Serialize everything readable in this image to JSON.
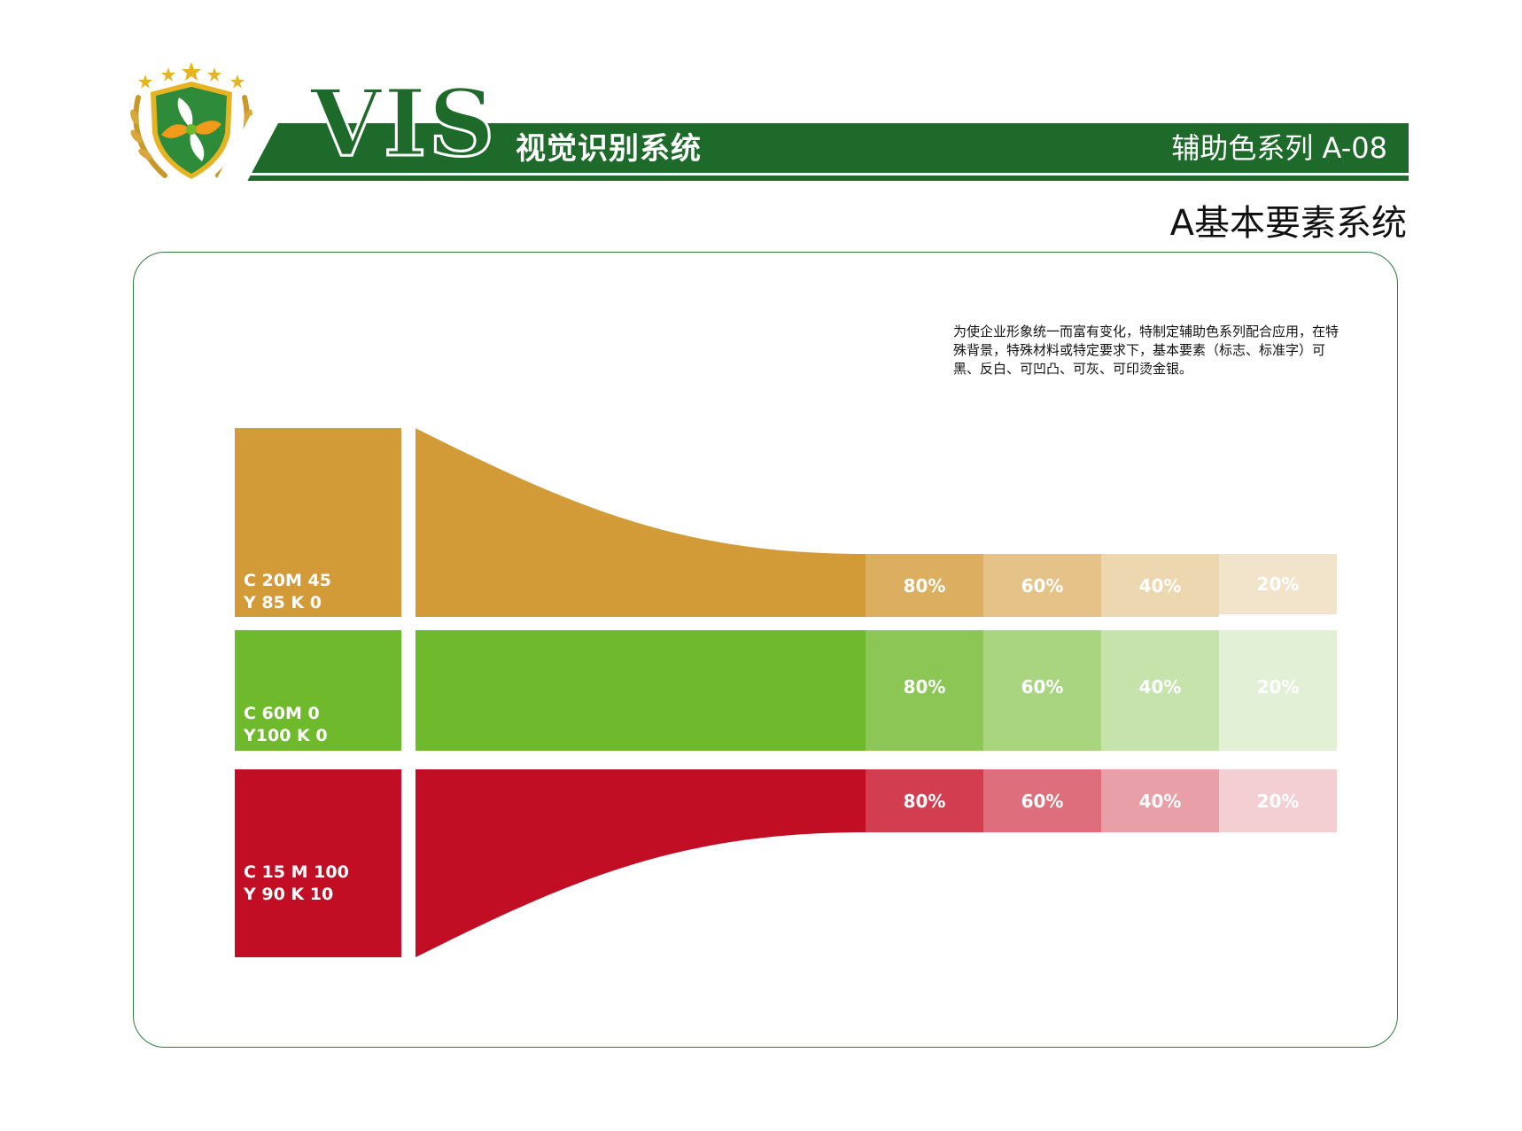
{
  "header": {
    "logo_text": "VIS",
    "subtitle": "视觉识别系统",
    "page_code": "辅助色系列  A-08",
    "section_title": "A基本要素系统"
  },
  "description": "为使企业形象统一而富有变化，特制定辅助色系列配合应用，在特殊背景，特殊材料或特定要求下，基本要素（标志、标准字）可黑、反白、可凹凸、可灰、可印烫金银。",
  "palette": {
    "colors": [
      {
        "label": "C 20M 45\nY 85 K 0",
        "hex": "#d39a38",
        "tints": [
          {
            "label": "80%",
            "hex": "#dcae60"
          },
          {
            "label": "60%",
            "hex": "#e5c288"
          },
          {
            "label": "40%",
            "hex": "#edd7b0"
          },
          {
            "label": "20%",
            "hex": "#f2e4cb"
          }
        ]
      },
      {
        "label": "C 60M 0\nY100 K 0",
        "hex": "#6fb92d",
        "tints": [
          {
            "label": "80%",
            "hex": "#8cc756"
          },
          {
            "label": "60%",
            "hex": "#a9d581"
          },
          {
            "label": "40%",
            "hex": "#c5e3ab"
          },
          {
            "label": "20%",
            "hex": "#e2f0d5"
          }
        ]
      },
      {
        "label": "C 15 M 100\nY 90 K 10",
        "hex": "#c20e24",
        "tints": [
          {
            "label": "80%",
            "hex": "#d23e50"
          },
          {
            "label": "60%",
            "hex": "#de6e7b"
          },
          {
            "label": "40%",
            "hex": "#e89fa7"
          },
          {
            "label": "20%",
            "hex": "#f3cfd3"
          }
        ]
      }
    ]
  }
}
